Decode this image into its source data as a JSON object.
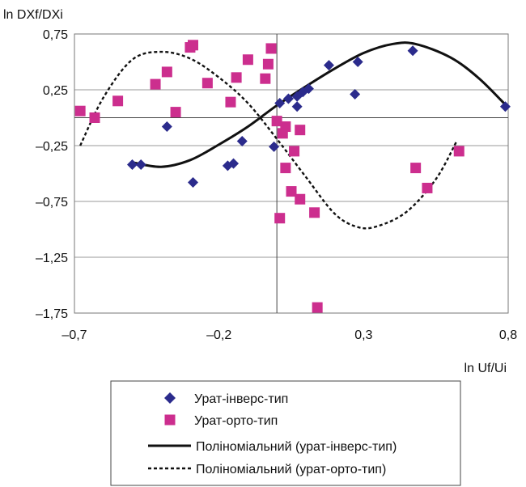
{
  "chart_data": {
    "type": "scatter",
    "ylabel": "ln DXf/DXi",
    "xlabel": "ln Uf/Ui",
    "xlim": [
      -0.7,
      0.8
    ],
    "ylim": [
      -1.75,
      0.75
    ],
    "x_ticks": [
      "–0,7",
      "–0,2",
      "0,3",
      "0,8"
    ],
    "y_ticks": [
      "0,75",
      "0,25",
      "–0,25",
      "–0,75",
      "–1,25",
      "–1,75"
    ],
    "x_tick_values": [
      -0.7,
      -0.2,
      0.3,
      0.8
    ],
    "y_tick_values": [
      0.75,
      0.25,
      -0.25,
      -0.75,
      -1.25,
      -1.75
    ],
    "grid": "horizontal",
    "series": [
      {
        "name": "Урат-інверс-тип",
        "marker": "diamond",
        "color": "#2b2b8c",
        "points": [
          [
            -0.5,
            -0.42
          ],
          [
            -0.47,
            -0.42
          ],
          [
            -0.38,
            -0.08
          ],
          [
            -0.29,
            -0.58
          ],
          [
            -0.17,
            -0.43
          ],
          [
            -0.15,
            -0.41
          ],
          [
            -0.12,
            -0.21
          ],
          [
            -0.01,
            -0.26
          ],
          [
            0.01,
            0.13
          ],
          [
            0.04,
            0.17
          ],
          [
            0.07,
            0.19
          ],
          [
            0.07,
            0.1
          ],
          [
            0.09,
            0.23
          ],
          [
            0.11,
            0.26
          ],
          [
            0.18,
            0.47
          ],
          [
            0.27,
            0.21
          ],
          [
            0.28,
            0.5
          ],
          [
            0.47,
            0.6
          ],
          [
            0.79,
            0.1
          ]
        ]
      },
      {
        "name": "Урат-орто-тип",
        "marker": "square",
        "color": "#cc2e8e",
        "points": [
          [
            -0.68,
            0.06
          ],
          [
            -0.63,
            0.0
          ],
          [
            -0.55,
            0.15
          ],
          [
            -0.42,
            0.3
          ],
          [
            -0.38,
            0.41
          ],
          [
            -0.35,
            0.05
          ],
          [
            -0.3,
            0.63
          ],
          [
            -0.29,
            0.65
          ],
          [
            -0.24,
            0.31
          ],
          [
            -0.16,
            0.14
          ],
          [
            -0.14,
            0.36
          ],
          [
            -0.1,
            0.52
          ],
          [
            -0.04,
            0.35
          ],
          [
            -0.03,
            0.48
          ],
          [
            -0.02,
            0.62
          ],
          [
            0.0,
            -0.03
          ],
          [
            0.01,
            -0.9
          ],
          [
            0.03,
            -0.08
          ],
          [
            0.02,
            -0.14
          ],
          [
            0.03,
            -0.45
          ],
          [
            0.05,
            -0.66
          ],
          [
            0.06,
            -0.3
          ],
          [
            0.08,
            -0.11
          ],
          [
            0.08,
            -0.73
          ],
          [
            0.13,
            -0.85
          ],
          [
            0.14,
            -1.7
          ],
          [
            0.48,
            -0.45
          ],
          [
            0.52,
            -0.63
          ],
          [
            0.63,
            -0.3
          ]
        ]
      }
    ],
    "trendlines": [
      {
        "name": "Поліноміальний (урат-інверс-тип)",
        "style": "solid",
        "color": "#111111",
        "x_range": [
          -0.5,
          0.8
        ],
        "points": [
          [
            -0.5,
            -0.4
          ],
          [
            -0.4,
            -0.44
          ],
          [
            -0.3,
            -0.38
          ],
          [
            -0.2,
            -0.24
          ],
          [
            -0.1,
            -0.08
          ],
          [
            0.0,
            0.11
          ],
          [
            0.1,
            0.28
          ],
          [
            0.2,
            0.44
          ],
          [
            0.3,
            0.58
          ],
          [
            0.4,
            0.66
          ],
          [
            0.48,
            0.66
          ],
          [
            0.6,
            0.54
          ],
          [
            0.7,
            0.35
          ],
          [
            0.8,
            0.09
          ]
        ]
      },
      {
        "name": "Поліноміальний (урат-орто-тип)",
        "style": "dashed",
        "color": "#111111",
        "x_range": [
          -0.68,
          0.62
        ],
        "points": [
          [
            -0.68,
            -0.25
          ],
          [
            -0.6,
            0.18
          ],
          [
            -0.5,
            0.52
          ],
          [
            -0.4,
            0.59
          ],
          [
            -0.3,
            0.53
          ],
          [
            -0.2,
            0.36
          ],
          [
            -0.1,
            0.13
          ],
          [
            0.0,
            -0.19
          ],
          [
            0.1,
            -0.53
          ],
          [
            0.2,
            -0.86
          ],
          [
            0.28,
            -0.98
          ],
          [
            0.35,
            -0.97
          ],
          [
            0.45,
            -0.84
          ],
          [
            0.55,
            -0.55
          ],
          [
            0.62,
            -0.22
          ]
        ]
      }
    ],
    "legend": {
      "position": "bottom",
      "entries": [
        "Урат-інверс-тип",
        "Урат-орто-тип",
        "Поліноміальний (урат-інверс-тип)",
        "Поліноміальний (урат-орто-тип)"
      ]
    }
  }
}
